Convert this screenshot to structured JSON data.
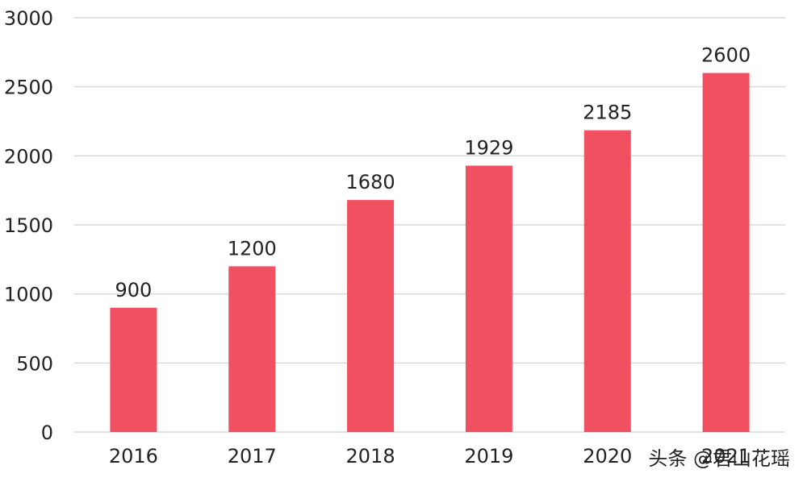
{
  "chart_data": {
    "type": "bar",
    "categories": [
      "2016",
      "2017",
      "2018",
      "2019",
      "2020",
      "2021"
    ],
    "values": [
      900,
      1200,
      1680,
      1929,
      2185,
      2600
    ],
    "ylim": [
      0,
      3000
    ],
    "yticks": [
      0,
      500,
      1000,
      1500,
      2000,
      2500,
      3000
    ],
    "ytick_labels": [
      "0",
      "500",
      "1000",
      "1500",
      "2000",
      "2500",
      "3000"
    ],
    "data_labels": [
      "900",
      "1200",
      "1680",
      "1929",
      "2185",
      "2600"
    ],
    "grid": true,
    "bar_color": "#f0505f",
    "grid_color": "#d9d9d9"
  },
  "watermark": {
    "text": "头条 @君山花瑶"
  }
}
